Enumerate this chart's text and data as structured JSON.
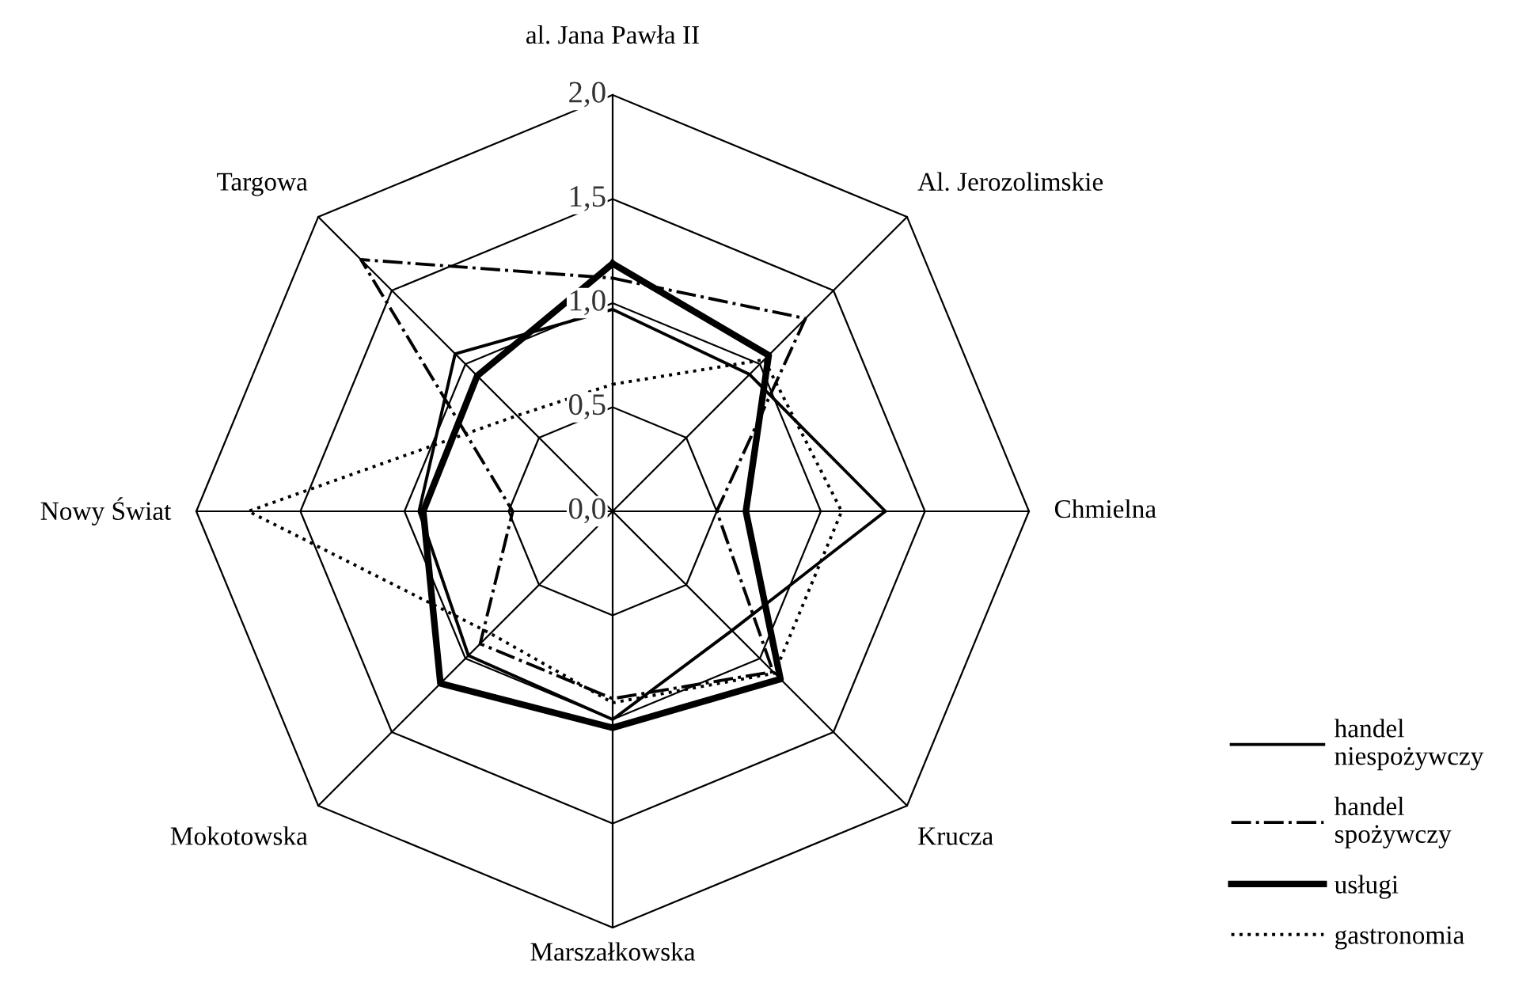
{
  "chart_data": {
    "type": "radar",
    "categories": [
      "al. Jana Pawła II",
      "Al. Jerozolimskie",
      "Chmielna",
      "Krucza",
      "Marszałkowska",
      "Mokotowska",
      "Nowy Świat",
      "Targowa"
    ],
    "ylim": [
      0,
      2.0
    ],
    "yticks": [
      {
        "value": 0,
        "label": "0,0"
      },
      {
        "value": 0.5,
        "label": "0,5"
      },
      {
        "value": 1.0,
        "label": "1,0"
      },
      {
        "value": 1.5,
        "label": "1,5"
      },
      {
        "value": 2.0,
        "label": "2,0"
      }
    ],
    "grid": true,
    "legend": "bottom right",
    "series": [
      {
        "name": "handel\nniespożywczy",
        "color": "#000000",
        "line_style": "solid",
        "values": [
          0.97,
          0.93,
          1.31,
          0.81,
          1.0,
          0.98,
          0.93,
          1.07
        ]
      },
      {
        "name": "handel\nspożywczy",
        "color": "#000000",
        "line_style": "dashdot",
        "values": [
          1.12,
          1.31,
          0.5,
          1.09,
          0.9,
          0.9,
          0.48,
          1.71
        ]
      },
      {
        "name": "usługi",
        "color": "#000000",
        "line_style": "solid",
        "values": [
          1.19,
          1.06,
          0.64,
          1.14,
          1.04,
          1.17,
          0.91,
          0.92
        ]
      },
      {
        "name": "gastronomia",
        "color": "#000000",
        "line_style": "dotted",
        "values": [
          0.61,
          1.03,
          1.1,
          1.1,
          0.92,
          0.83,
          1.75,
          0.65
        ]
      }
    ]
  }
}
